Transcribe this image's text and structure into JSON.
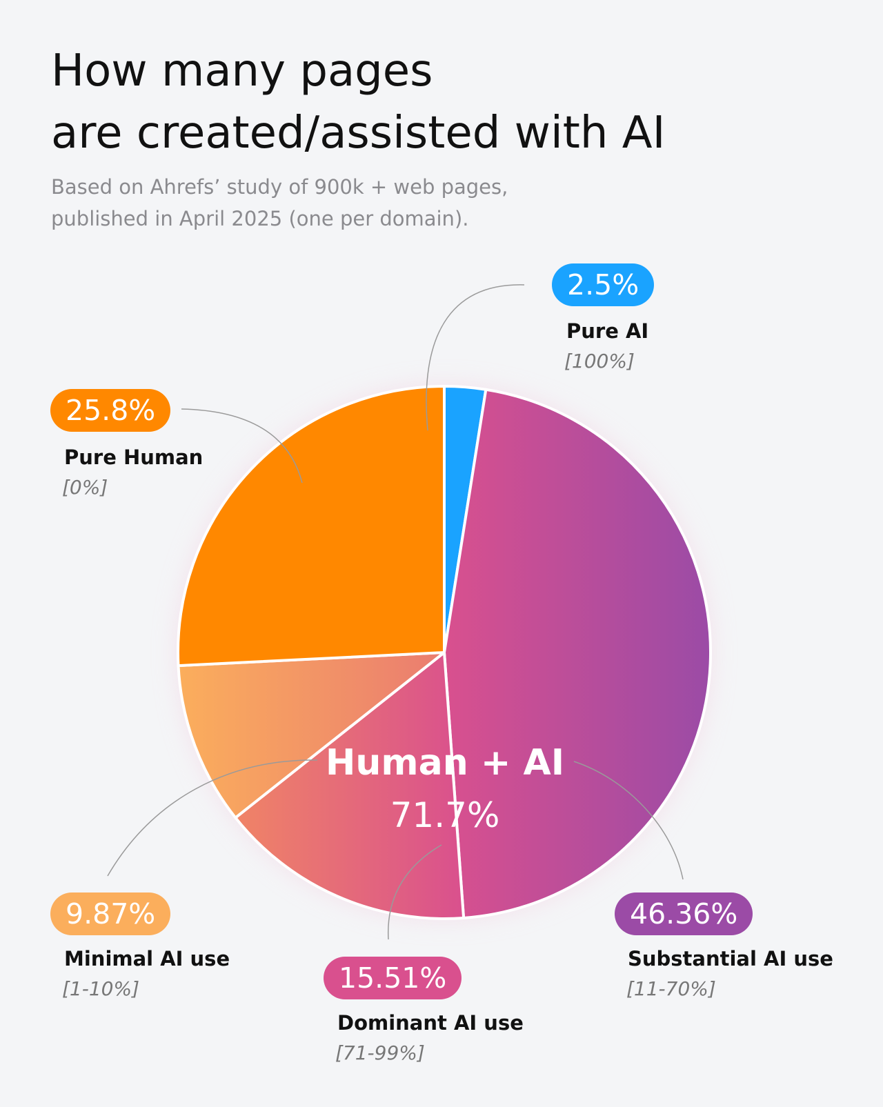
{
  "title_lines": [
    "How many pages",
    "are created/assisted with AI"
  ],
  "subtitle_lines": [
    "Based on Ahrefs’ study of 900k + web pages,",
    "published in April 2025 (one per domain)."
  ],
  "chart_data": {
    "type": "pie",
    "title": "How many pages are created/assisted with AI",
    "subtitle": "Based on Ahrefs’ study of 900k + web pages, published in April 2025 (one per domain).",
    "slices": [
      {
        "name": "Pure AI",
        "range": "[100%]",
        "value": 2.5,
        "label": "2.5%",
        "color": "#1aa3ff"
      },
      {
        "name": "Substantial AI use",
        "range": "[11-70%]",
        "value": 46.36,
        "label": "46.36%",
        "color": "#9b4ba6"
      },
      {
        "name": "Dominant AI use",
        "range": "[71-99%]",
        "value": 15.51,
        "label": "15.51%",
        "color": "#d9508e"
      },
      {
        "name": "Minimal AI use",
        "range": "[1-10%]",
        "value": 9.87,
        "label": "9.87%",
        "color": "#fbae5c"
      },
      {
        "name": "Pure Human",
        "range": "[0%]",
        "value": 25.8,
        "label": "25.8%",
        "color": "#ff8800"
      }
    ],
    "group": {
      "name": "Human + AI",
      "value": 71.7,
      "label": "71.7%"
    }
  }
}
